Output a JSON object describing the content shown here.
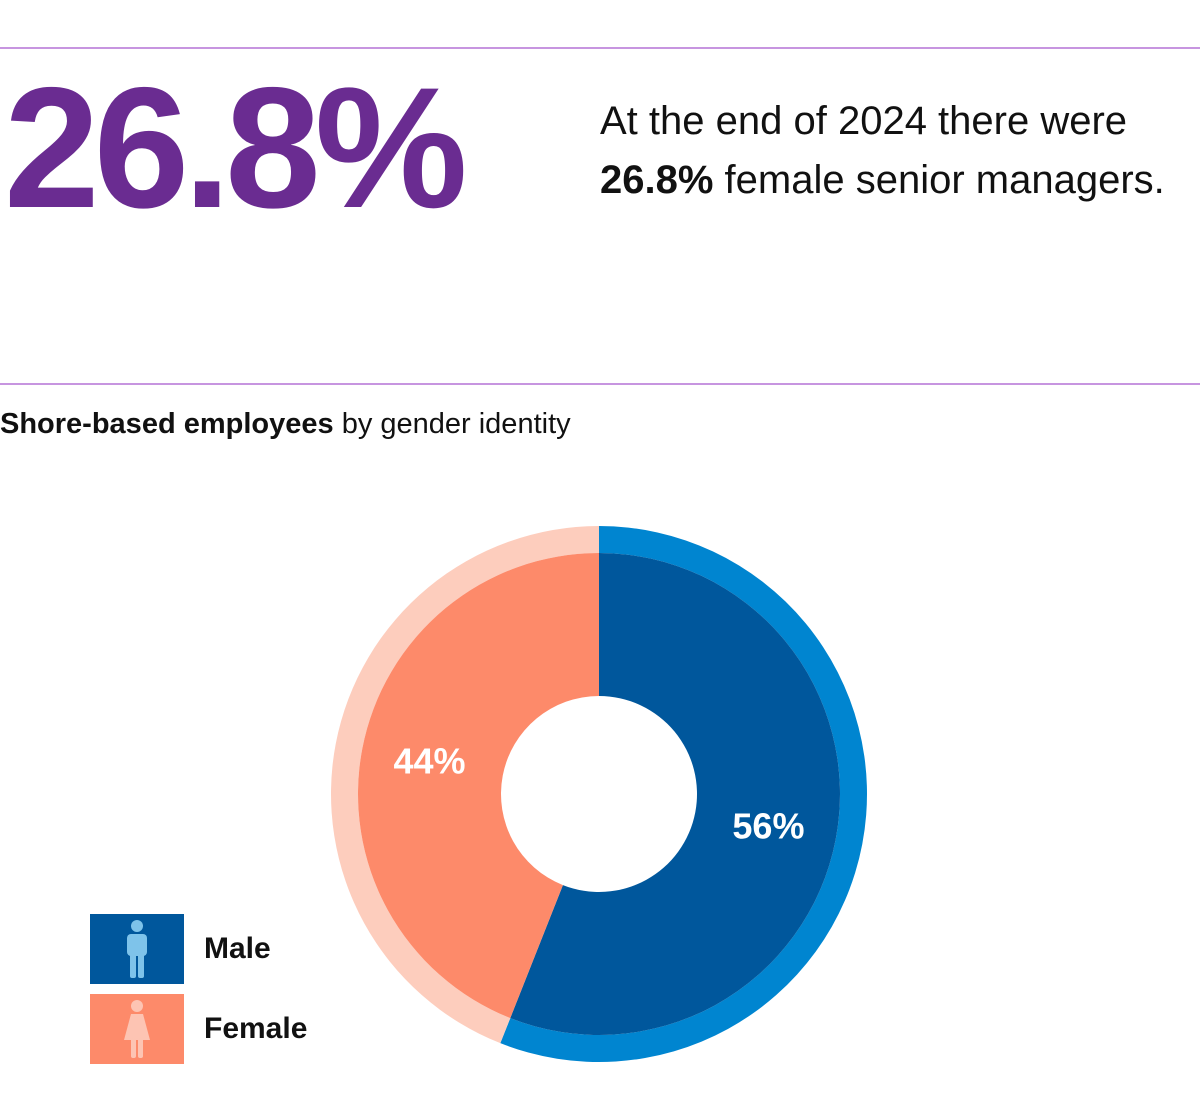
{
  "headline": {
    "stat": "26.8%",
    "text_before": "At the end of 2024 there were ",
    "text_bold": "26.8%",
    "text_after": " female senior managers."
  },
  "chart_title": {
    "bold": "Shore-based employees",
    "rest": " by gender identity"
  },
  "colors": {
    "purple": "#6a2c91",
    "rule": "#c795e0",
    "male": "#00579c",
    "male_outer": "#0085d0",
    "male_icon": "#7ec3ea",
    "female": "#fd8a6a",
    "female_outer": "#fdcdbd",
    "female_icon": "#fdc4b3"
  },
  "chart_data": {
    "type": "pie",
    "title": "Shore-based employees by gender identity",
    "categories": [
      "Male",
      "Female"
    ],
    "values": [
      56,
      44
    ],
    "data_labels": [
      "56%",
      "44%"
    ],
    "legend_position": "bottom-left"
  },
  "legend": [
    {
      "label": "Male",
      "icon": "male-person-icon"
    },
    {
      "label": "Female",
      "icon": "female-person-icon"
    }
  ]
}
